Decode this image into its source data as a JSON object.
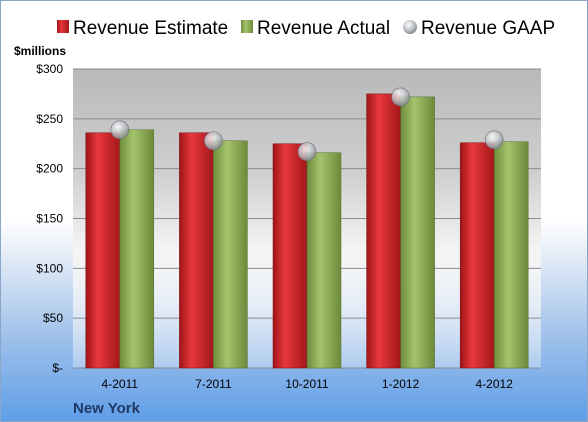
{
  "chart_data": {
    "type": "bar",
    "unit_label": "$millions",
    "subtitle": "New York",
    "categories": [
      "4-2011",
      "7-2011",
      "10-2011",
      "1-2012",
      "4-2012"
    ],
    "series": [
      {
        "name": "Revenue Estimate",
        "type": "bar",
        "color": "#d7262b",
        "values": [
          236,
          236,
          225,
          275,
          226
        ]
      },
      {
        "name": "Revenue Actual",
        "type": "bar",
        "color": "#8fae5a",
        "values": [
          239,
          228,
          216,
          272,
          227
        ]
      },
      {
        "name": "Revenue GAAP",
        "type": "marker",
        "color": "#b8bcc4",
        "values": [
          239,
          228,
          217,
          272,
          229
        ]
      }
    ],
    "yticks": [
      {
        "value": 0,
        "label": "$-"
      },
      {
        "value": 50,
        "label": "$50"
      },
      {
        "value": 100,
        "label": "$100"
      },
      {
        "value": 150,
        "label": "$150"
      },
      {
        "value": 200,
        "label": "$200"
      },
      {
        "value": 250,
        "label": "$250"
      },
      {
        "value": 300,
        "label": "$300"
      }
    ],
    "ylim": [
      0,
      300
    ],
    "grid": true,
    "legend": "top"
  }
}
